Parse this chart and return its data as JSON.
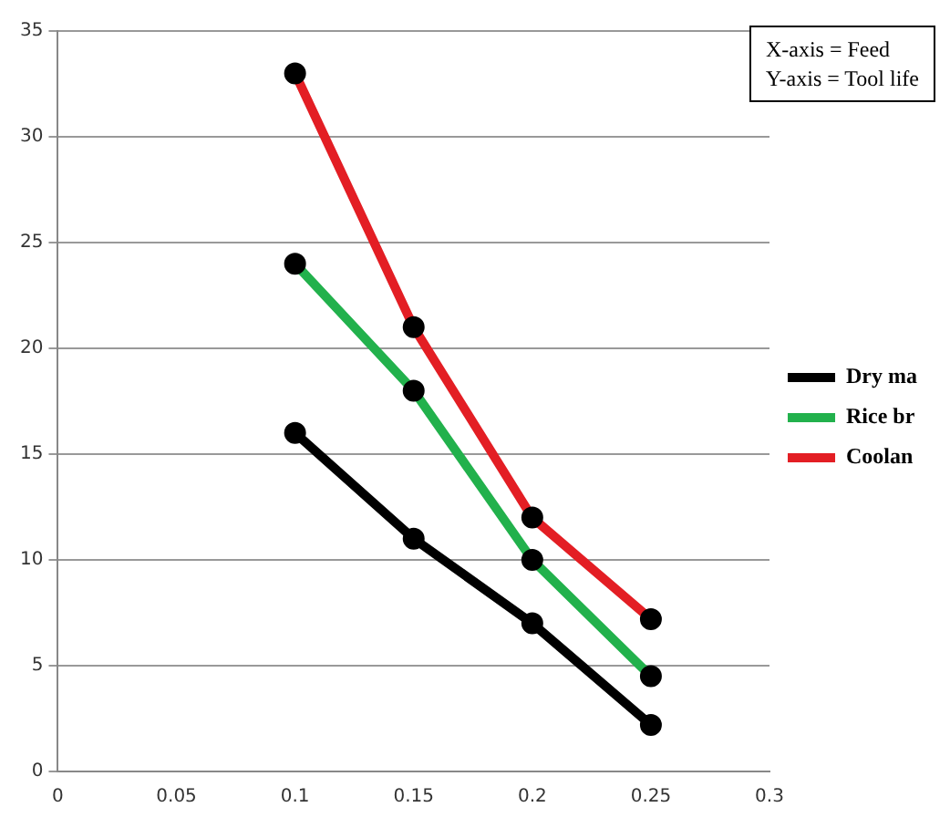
{
  "chart_data": {
    "type": "line",
    "x": [
      0.1,
      0.15,
      0.2,
      0.25
    ],
    "series": [
      {
        "name": "Dry ma",
        "color": "#000000",
        "values": [
          16,
          11,
          7,
          2.2
        ]
      },
      {
        "name": "Rice br",
        "color": "#22b14c",
        "values": [
          24,
          18,
          10,
          4.5
        ]
      },
      {
        "name": "Coolan",
        "color": "#e31e24",
        "values": [
          33,
          21,
          12,
          7.2
        ]
      }
    ],
    "xlim": [
      0,
      0.3
    ],
    "xticks": [
      0,
      0.05,
      0.1,
      0.15,
      0.2,
      0.25,
      0.3
    ],
    "ylim": [
      0,
      35
    ],
    "yticks": [
      0,
      5,
      10,
      15,
      20,
      25,
      30,
      35
    ],
    "grid": "y",
    "legend": "right",
    "marker": "circle",
    "line_style": "solid",
    "annotations": [
      "X-axis = Feed",
      "Y-axis = Tool life"
    ]
  }
}
